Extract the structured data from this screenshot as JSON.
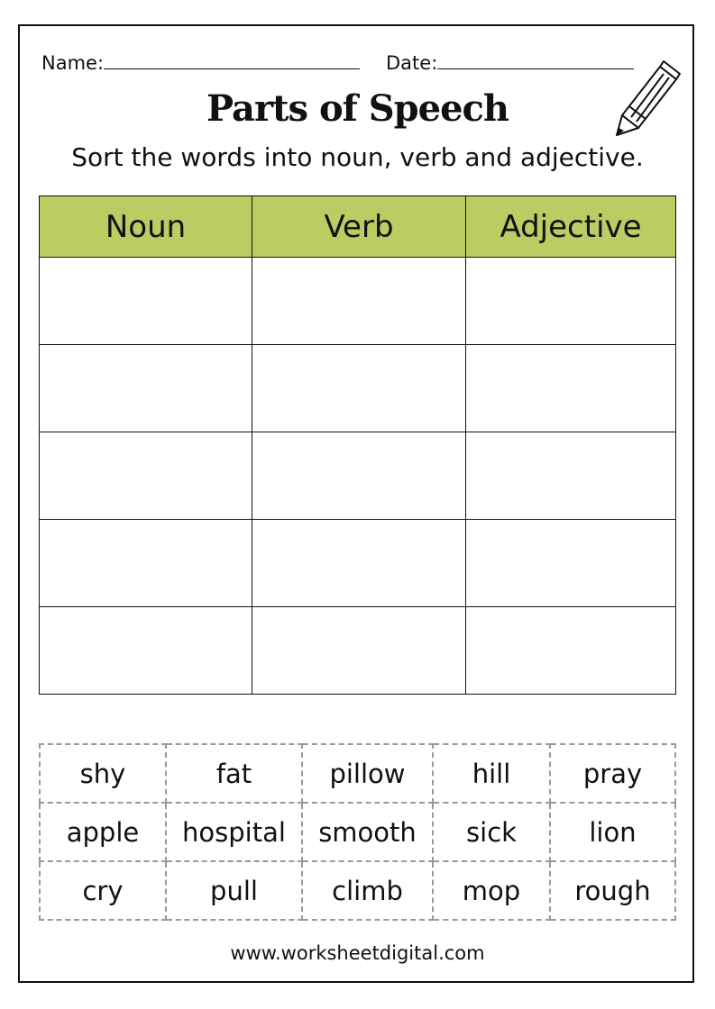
{
  "header": {
    "name_label": "Name:",
    "date_label": "Date:"
  },
  "title": "Parts of Speech",
  "instruction": "Sort the words into noun, verb and adjective.",
  "icon": "pencil-icon",
  "accent_color": "#bccb62",
  "table": {
    "columns": [
      "Noun",
      "Verb",
      "Adjective"
    ],
    "row_count": 5
  },
  "word_bank": [
    [
      "shy",
      "fat",
      "pillow",
      "hill",
      "pray"
    ],
    [
      "apple",
      "hospital",
      "smooth",
      "sick",
      "lion"
    ],
    [
      "cry",
      "pull",
      "climb",
      "mop",
      "rough"
    ]
  ],
  "footer": "www.worksheetdigital.com"
}
